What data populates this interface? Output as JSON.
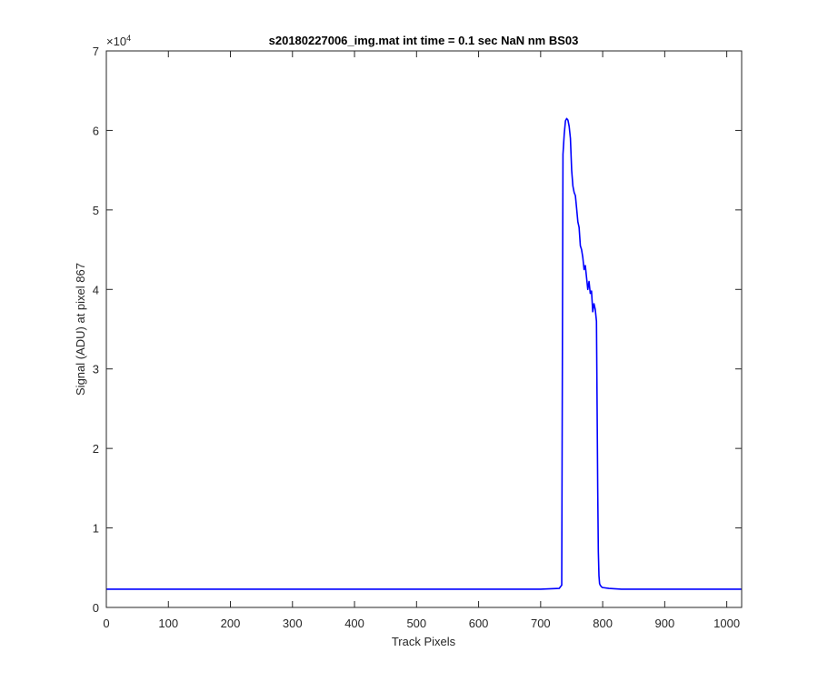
{
  "chart_data": {
    "type": "line",
    "title": "s20180227006_img.mat int time = 0.1 sec  NaN nm BS03",
    "xlabel": "Track Pixels",
    "ylabel": "Signal (ADU) at pixel 867",
    "y_exponent_label": "×10",
    "y_exponent_power": "4",
    "xlim": [
      0,
      1024
    ],
    "ylim": [
      0,
      70000
    ],
    "x_ticks": [
      0,
      100,
      200,
      300,
      400,
      500,
      600,
      700,
      800,
      900,
      1000
    ],
    "y_ticks": [
      0,
      10000,
      20000,
      30000,
      40000,
      50000,
      60000,
      70000
    ],
    "y_tick_labels": [
      "0",
      "1",
      "2",
      "3",
      "4",
      "5",
      "6",
      "7"
    ],
    "grid": false,
    "legend": "none",
    "series_color": "#0000ff",
    "series": [
      {
        "x": [
          0,
          100,
          200,
          300,
          400,
          500,
          600,
          700,
          730,
          734,
          736,
          738,
          740,
          742,
          744,
          746,
          748,
          750,
          752,
          754,
          756,
          758,
          760,
          762,
          764,
          766,
          768,
          770,
          772,
          774,
          776,
          778,
          780,
          782,
          784,
          786,
          788,
          790,
          792,
          793,
          794,
          795,
          796,
          798,
          800,
          810,
          830,
          850,
          900,
          950,
          1000,
          1024
        ],
        "y": [
          2300,
          2300,
          2300,
          2300,
          2300,
          2300,
          2300,
          2300,
          2400,
          2800,
          57000,
          59500,
          61200,
          61500,
          61300,
          60500,
          59000,
          55000,
          53000,
          52200,
          51800,
          50200,
          48500,
          47800,
          45500,
          45000,
          44000,
          42500,
          43000,
          41500,
          40000,
          41000,
          39500,
          39800,
          37200,
          38200,
          37500,
          36000,
          15000,
          7000,
          4000,
          3000,
          2800,
          2600,
          2500,
          2400,
          2300,
          2300,
          2300,
          2300,
          2300,
          2300
        ]
      }
    ]
  }
}
